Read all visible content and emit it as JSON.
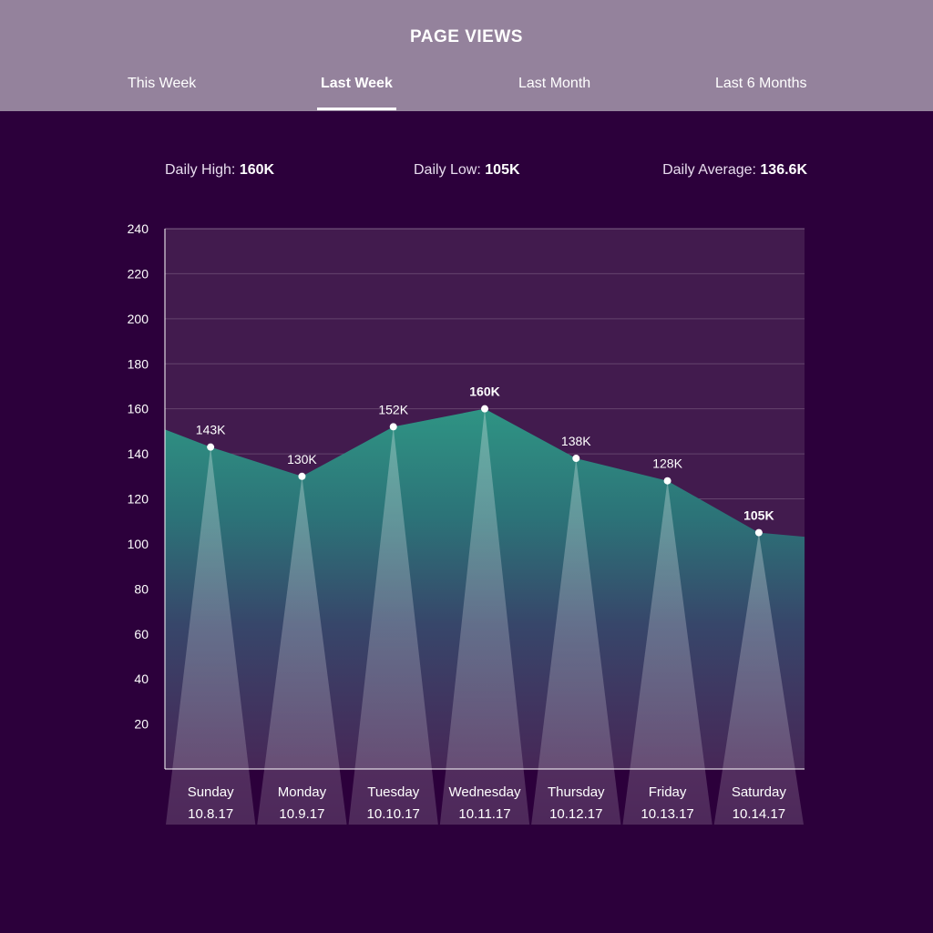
{
  "header": {
    "title": "PAGE VIEWS",
    "tabs": [
      {
        "label": "This Week",
        "active": false
      },
      {
        "label": "Last Week",
        "active": true
      },
      {
        "label": "Last Month",
        "active": false
      },
      {
        "label": "Last 6 Months",
        "active": false
      }
    ]
  },
  "stats": {
    "high_label": "Daily High:",
    "high_value": "160K",
    "low_label": "Daily Low:",
    "low_value": "105K",
    "avg_label": "Daily Average:",
    "avg_value": "136.6K"
  },
  "colors": {
    "background": "#2c003b",
    "header": "#94829c",
    "area_top": "#2e8a80",
    "plot_bg": "#421b4e"
  },
  "chart_data": {
    "type": "area",
    "title": "",
    "xlabel": "",
    "ylabel": "",
    "ylim": [
      0,
      240
    ],
    "yticks": [
      20,
      40,
      60,
      80,
      100,
      120,
      140,
      160,
      180,
      200,
      220,
      240
    ],
    "grid": true,
    "categories": [
      "Sunday",
      "Monday",
      "Tuesday",
      "Wednesday",
      "Thursday",
      "Friday",
      "Saturday"
    ],
    "dates": [
      "10.8.17",
      "10.9.17",
      "10.10.17",
      "10.11.17",
      "10.12.17",
      "10.13.17",
      "10.14.17"
    ],
    "values": [
      143,
      130,
      152,
      160,
      138,
      128,
      105
    ],
    "value_labels": [
      "143K",
      "130K",
      "152K",
      "160K",
      "138K",
      "128K",
      "105K"
    ],
    "highlighted": [
      false,
      false,
      false,
      true,
      false,
      false,
      true
    ]
  }
}
